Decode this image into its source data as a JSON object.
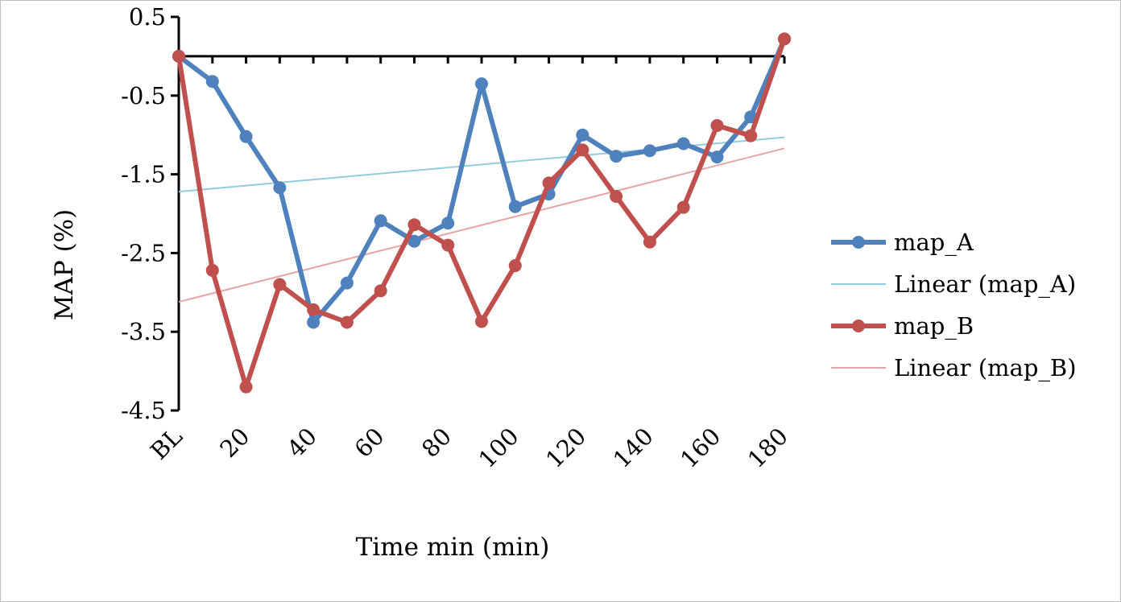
{
  "chart_data": {
    "type": "line",
    "xlabel": "Time min (min)",
    "ylabel": "MAP (%)",
    "ylim": [
      -4.5,
      0.5
    ],
    "yticks": [
      "0.5",
      "-0.5",
      "-1.5",
      "-2.5",
      "-3.5",
      "-4.5"
    ],
    "ytick_values": [
      0.5,
      -0.5,
      -1.5,
      -2.5,
      -3.5,
      -4.5
    ],
    "x": [
      0,
      10,
      20,
      30,
      40,
      50,
      60,
      70,
      80,
      90,
      100,
      110,
      120,
      130,
      140,
      150,
      160,
      170,
      180
    ],
    "xticks": [
      "BL",
      "20",
      "40",
      "60",
      "80",
      "100",
      "120",
      "140",
      "160",
      "180"
    ],
    "xtick_values": [
      0,
      20,
      40,
      60,
      80,
      100,
      120,
      140,
      160,
      180
    ],
    "legend_position": "right",
    "series": [
      {
        "name": "map_A",
        "color": "#4f81bd",
        "values": [
          0,
          -0.32,
          -1.02,
          -1.67,
          -3.38,
          -2.88,
          -2.09,
          -2.35,
          -2.12,
          -0.35,
          -1.91,
          -1.75,
          -1.0,
          -1.27,
          -1.2,
          -1.11,
          -1.28,
          -0.77,
          0.22
        ]
      },
      {
        "name": "map_B",
        "color": "#c0504d",
        "values": [
          0,
          -2.72,
          -4.2,
          -2.9,
          -3.22,
          -3.38,
          -2.98,
          -2.14,
          -2.4,
          -3.37,
          -2.66,
          -1.61,
          -1.19,
          -1.78,
          -2.36,
          -1.92,
          -0.88,
          -1.01,
          0.22
        ]
      }
    ],
    "trendlines": [
      {
        "name": "Linear (map_A)",
        "color": "#92cddc",
        "start": -1.72,
        "end": -1.03
      },
      {
        "name": "Linear (map_B)",
        "color": "#e6a5a3",
        "start": -3.12,
        "end": -1.17
      }
    ]
  }
}
